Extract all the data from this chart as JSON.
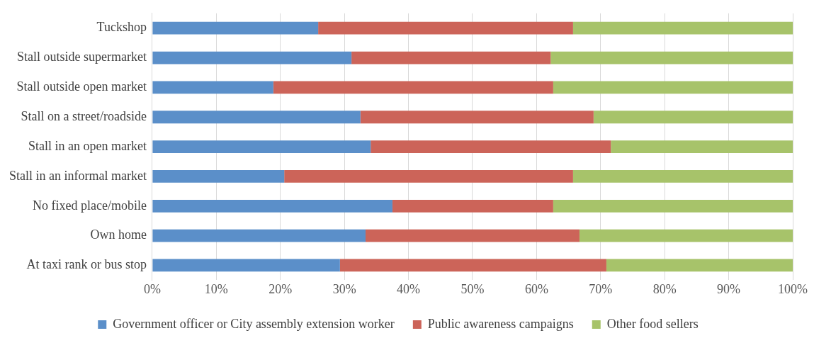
{
  "chart_data": {
    "type": "bar",
    "orientation": "horizontal",
    "stacked": true,
    "categories": [
      "Tuckshop",
      "Stall outside supermarket",
      "Stall outside open market",
      "Stall on a street/roadside",
      "Stall in an open market",
      "Stall in an informal market",
      "No fixed place/mobile",
      "Own home",
      "At taxi rank or bus stop"
    ],
    "series": [
      {
        "name": "Government officer or City assembly extension worker",
        "color": "#5b8fc9",
        "values": [
          25.9,
          31.1,
          18.9,
          32.5,
          34.1,
          20.6,
          37.5,
          33.3,
          29.3
        ]
      },
      {
        "name": "Public awareness campaigns",
        "color": "#cc6459",
        "values": [
          39.8,
          31.1,
          43.7,
          36.4,
          37.5,
          45.1,
          25.1,
          33.4,
          41.6
        ]
      },
      {
        "name": "Other food sellers",
        "color": "#a7c36a",
        "values": [
          34.3,
          37.8,
          37.4,
          31.1,
          28.4,
          34.3,
          37.4,
          33.3,
          29.1
        ]
      }
    ],
    "xlim": [
      0,
      100
    ],
    "xticks": [
      {
        "value": 0,
        "label": "0%"
      },
      {
        "value": 10,
        "label": "10%"
      },
      {
        "value": 20,
        "label": "20%"
      },
      {
        "value": 30,
        "label": "30%"
      },
      {
        "value": 40,
        "label": "40%"
      },
      {
        "value": 50,
        "label": "50%"
      },
      {
        "value": 60,
        "label": "60%"
      },
      {
        "value": 70,
        "label": "70%"
      },
      {
        "value": 80,
        "label": "80%"
      },
      {
        "value": 90,
        "label": "90%"
      },
      {
        "value": 100,
        "label": "100%"
      }
    ],
    "grid": "x",
    "legend": "bottom"
  }
}
